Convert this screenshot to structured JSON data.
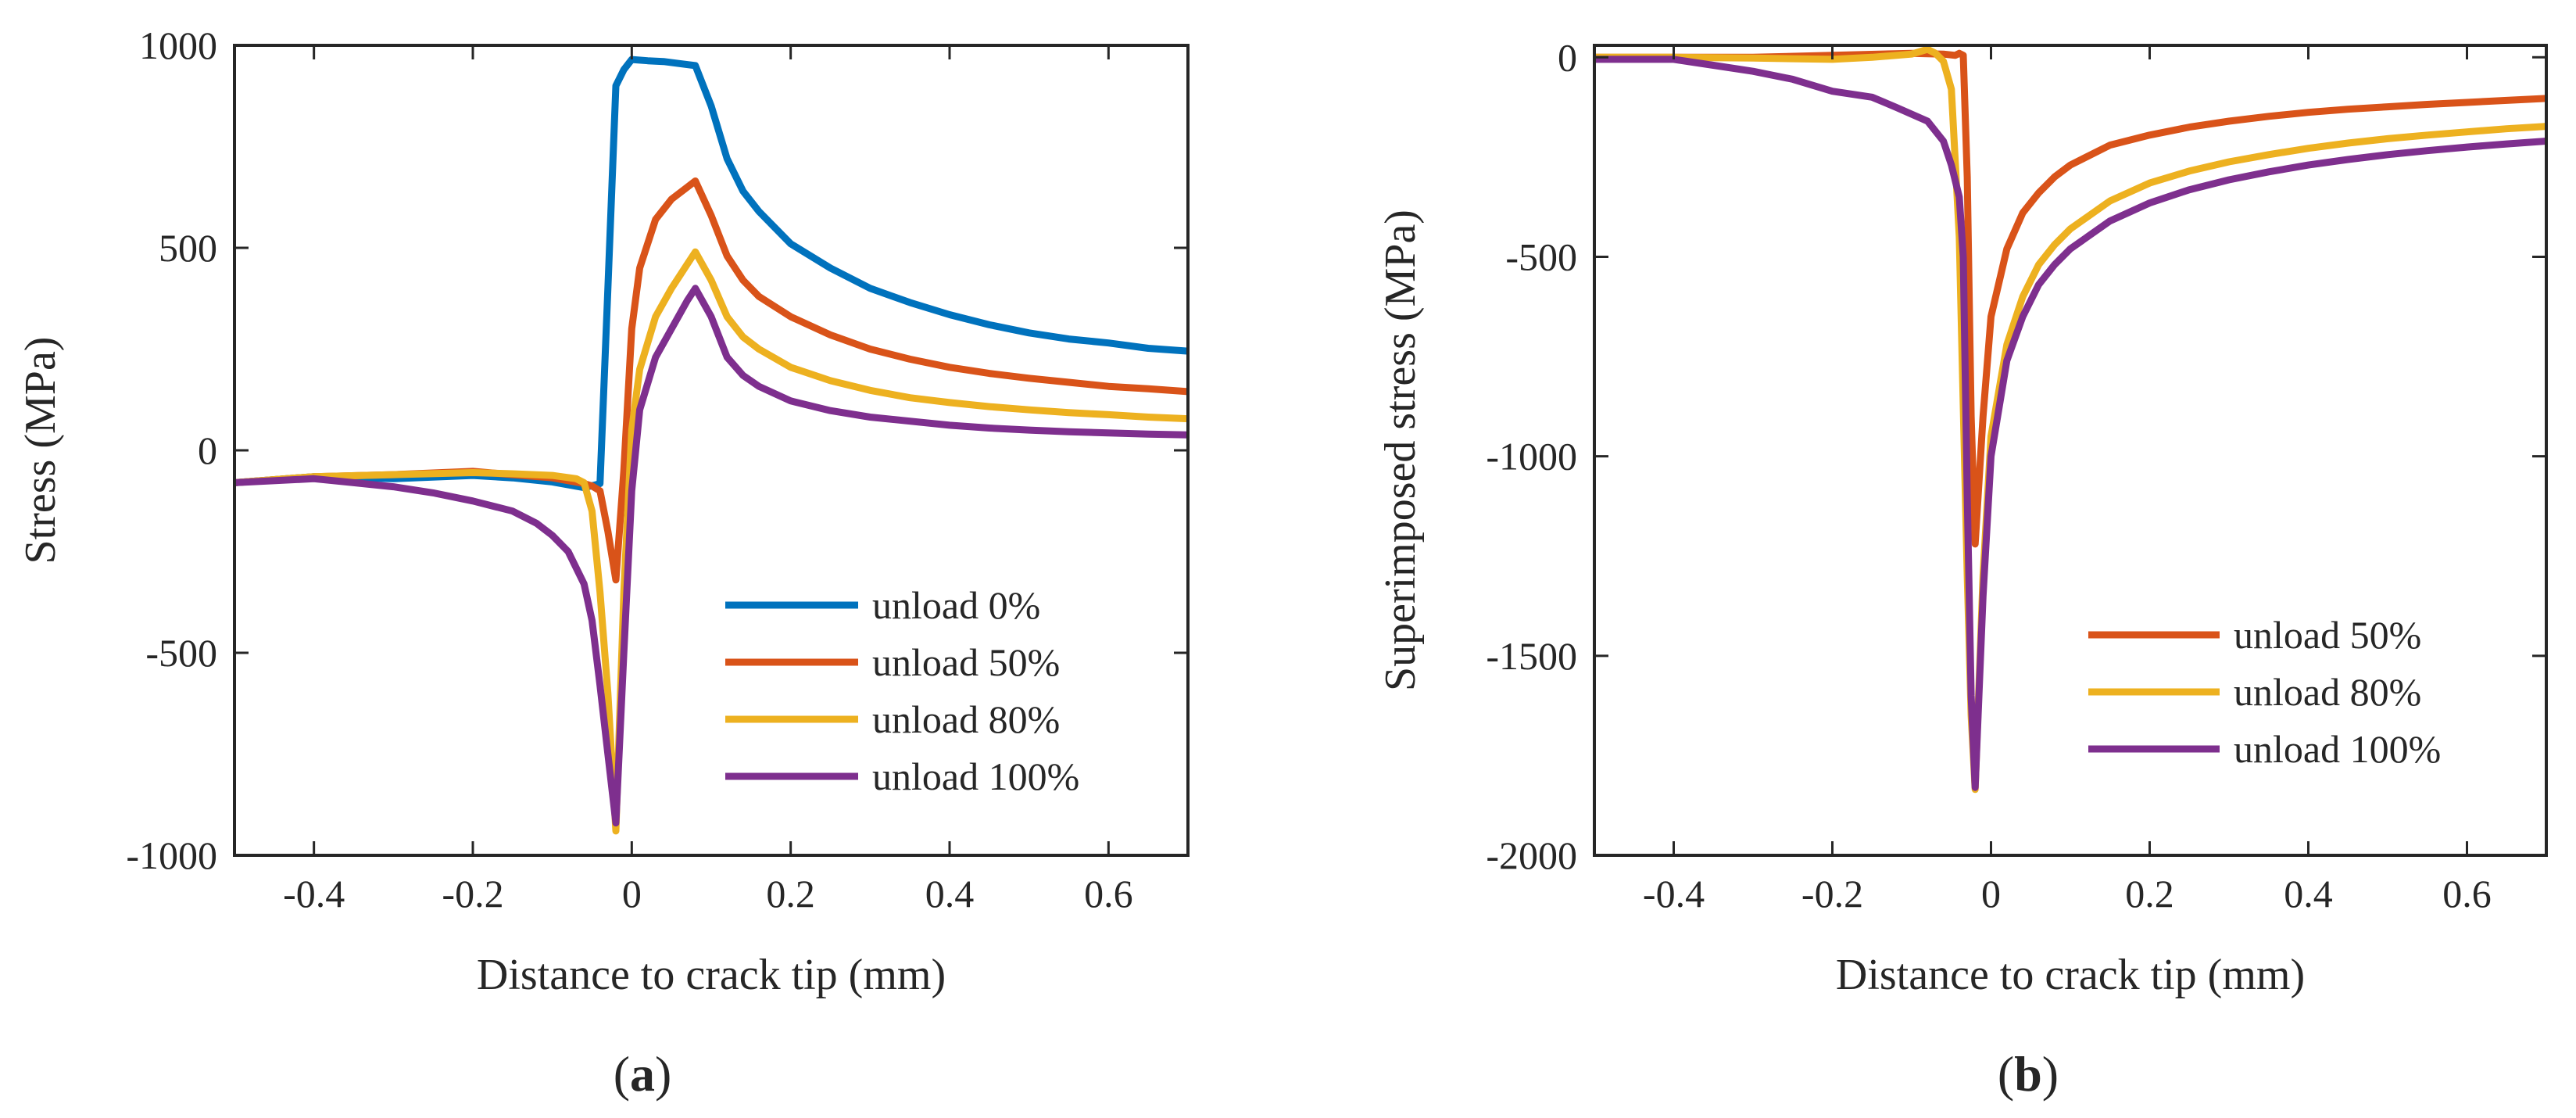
{
  "chart_data": [
    {
      "panel_label": "(a)",
      "type": "line",
      "title": "",
      "xlabel": "Distance to crack tip (mm)",
      "ylabel": "Stress (MPa)",
      "xlim": [
        -0.5,
        0.7
      ],
      "ylim": [
        -1000,
        1000
      ],
      "xticks": [
        -0.4,
        -0.2,
        0,
        0.2,
        0.4,
        0.6
      ],
      "xtick_labels": [
        "-0.4",
        "-0.2",
        "0",
        "0.2",
        "0.4",
        "0.6"
      ],
      "yticks": [
        -1000,
        -500,
        0,
        500,
        1000
      ],
      "ytick_labels": [
        "-1000",
        "-500",
        "0",
        "500",
        "1000"
      ],
      "legend_position": "lower-right",
      "series": [
        {
          "name": "unload 0%",
          "color": "#0072BD",
          "points": [
            [
              -0.5,
              -80
            ],
            [
              -0.4,
              -65
            ],
            [
              -0.3,
              -70
            ],
            [
              -0.2,
              -62
            ],
            [
              -0.15,
              -68
            ],
            [
              -0.1,
              -78
            ],
            [
              -0.06,
              -92
            ],
            [
              -0.045,
              -85
            ],
            [
              -0.04,
              -82
            ],
            [
              -0.03,
              400
            ],
            [
              -0.02,
              900
            ],
            [
              -0.01,
              940
            ],
            [
              0.0,
              965
            ],
            [
              0.02,
              962
            ],
            [
              0.04,
              960
            ],
            [
              0.06,
              955
            ],
            [
              0.08,
              950
            ],
            [
              0.1,
              850
            ],
            [
              0.12,
              720
            ],
            [
              0.14,
              640
            ],
            [
              0.16,
              590
            ],
            [
              0.2,
              510
            ],
            [
              0.25,
              450
            ],
            [
              0.3,
              400
            ],
            [
              0.35,
              365
            ],
            [
              0.4,
              335
            ],
            [
              0.45,
              310
            ],
            [
              0.5,
              290
            ],
            [
              0.55,
              275
            ],
            [
              0.6,
              265
            ],
            [
              0.65,
              252
            ],
            [
              0.7,
              245
            ]
          ]
        },
        {
          "name": "unload 50%",
          "color": "#D95319",
          "points": [
            [
              -0.5,
              -80
            ],
            [
              -0.4,
              -65
            ],
            [
              -0.3,
              -60
            ],
            [
              -0.2,
              -52
            ],
            [
              -0.15,
              -60
            ],
            [
              -0.1,
              -68
            ],
            [
              -0.06,
              -82
            ],
            [
              -0.05,
              -88
            ],
            [
              -0.04,
              -100
            ],
            [
              -0.03,
              -200
            ],
            [
              -0.02,
              -320
            ],
            [
              -0.01,
              -50
            ],
            [
              0.0,
              300
            ],
            [
              0.01,
              450
            ],
            [
              0.03,
              570
            ],
            [
              0.05,
              620
            ],
            [
              0.07,
              650
            ],
            [
              0.08,
              665
            ],
            [
              0.1,
              580
            ],
            [
              0.12,
              480
            ],
            [
              0.14,
              420
            ],
            [
              0.16,
              380
            ],
            [
              0.2,
              330
            ],
            [
              0.25,
              285
            ],
            [
              0.3,
              250
            ],
            [
              0.35,
              225
            ],
            [
              0.4,
              205
            ],
            [
              0.45,
              190
            ],
            [
              0.5,
              178
            ],
            [
              0.55,
              168
            ],
            [
              0.6,
              158
            ],
            [
              0.65,
              152
            ],
            [
              0.7,
              145
            ]
          ]
        },
        {
          "name": "unload 80%",
          "color": "#EDB120",
          "points": [
            [
              -0.5,
              -80
            ],
            [
              -0.4,
              -65
            ],
            [
              -0.3,
              -60
            ],
            [
              -0.2,
              -55
            ],
            [
              -0.15,
              -58
            ],
            [
              -0.1,
              -62
            ],
            [
              -0.07,
              -70
            ],
            [
              -0.06,
              -80
            ],
            [
              -0.05,
              -150
            ],
            [
              -0.04,
              -350
            ],
            [
              -0.03,
              -600
            ],
            [
              -0.02,
              -940
            ],
            [
              -0.01,
              -350
            ],
            [
              0.0,
              50
            ],
            [
              0.01,
              200
            ],
            [
              0.03,
              330
            ],
            [
              0.05,
              400
            ],
            [
              0.07,
              460
            ],
            [
              0.08,
              490
            ],
            [
              0.1,
              420
            ],
            [
              0.12,
              330
            ],
            [
              0.14,
              280
            ],
            [
              0.16,
              250
            ],
            [
              0.2,
              205
            ],
            [
              0.25,
              172
            ],
            [
              0.3,
              148
            ],
            [
              0.35,
              130
            ],
            [
              0.4,
              118
            ],
            [
              0.45,
              108
            ],
            [
              0.5,
              100
            ],
            [
              0.55,
              93
            ],
            [
              0.6,
              88
            ],
            [
              0.65,
              82
            ],
            [
              0.7,
              78
            ]
          ]
        },
        {
          "name": "unload 100%",
          "color": "#7E2F8E",
          "points": [
            [
              -0.5,
              -80
            ],
            [
              -0.4,
              -70
            ],
            [
              -0.35,
              -80
            ],
            [
              -0.3,
              -90
            ],
            [
              -0.25,
              -105
            ],
            [
              -0.2,
              -125
            ],
            [
              -0.15,
              -150
            ],
            [
              -0.12,
              -180
            ],
            [
              -0.1,
              -210
            ],
            [
              -0.08,
              -250
            ],
            [
              -0.06,
              -330
            ],
            [
              -0.05,
              -420
            ],
            [
              -0.04,
              -580
            ],
            [
              -0.03,
              -750
            ],
            [
              -0.02,
              -920
            ],
            [
              -0.01,
              -500
            ],
            [
              0.0,
              -100
            ],
            [
              0.01,
              100
            ],
            [
              0.03,
              230
            ],
            [
              0.05,
              300
            ],
            [
              0.07,
              370
            ],
            [
              0.08,
              400
            ],
            [
              0.1,
              330
            ],
            [
              0.12,
              230
            ],
            [
              0.14,
              185
            ],
            [
              0.16,
              158
            ],
            [
              0.2,
              122
            ],
            [
              0.25,
              98
            ],
            [
              0.3,
              82
            ],
            [
              0.35,
              72
            ],
            [
              0.4,
              62
            ],
            [
              0.45,
              55
            ],
            [
              0.5,
              50
            ],
            [
              0.55,
              46
            ],
            [
              0.6,
              43
            ],
            [
              0.65,
              40
            ],
            [
              0.7,
              38
            ]
          ]
        }
      ]
    },
    {
      "panel_label": "(b)",
      "type": "line",
      "title": "",
      "xlabel": "Distance to crack tip (mm)",
      "ylabel": "Superimposed stress (MPa)",
      "xlim": [
        -0.5,
        0.7
      ],
      "ylim": [
        -2000,
        30
      ],
      "xticks": [
        -0.4,
        -0.2,
        0,
        0.2,
        0.4,
        0.6
      ],
      "xtick_labels": [
        "-0.4",
        "-0.2",
        "0",
        "0.2",
        "0.4",
        "0.6"
      ],
      "yticks": [
        -2000,
        -1500,
        -1000,
        -500,
        0
      ],
      "ytick_labels": [
        "-2000",
        "-1500",
        "-1000",
        "-500",
        "0"
      ],
      "legend_position": "lower-right",
      "series": [
        {
          "name": "unload 50%",
          "color": "#D95319",
          "points": [
            [
              -0.5,
              0
            ],
            [
              -0.4,
              0
            ],
            [
              -0.3,
              0
            ],
            [
              -0.2,
              5
            ],
            [
              -0.1,
              10
            ],
            [
              -0.06,
              8
            ],
            [
              -0.045,
              5
            ],
            [
              -0.04,
              10
            ],
            [
              -0.035,
              5
            ],
            [
              -0.03,
              -300
            ],
            [
              -0.025,
              -900
            ],
            [
              -0.02,
              -1220
            ],
            [
              -0.01,
              -900
            ],
            [
              0.0,
              -650
            ],
            [
              0.02,
              -480
            ],
            [
              0.04,
              -390
            ],
            [
              0.06,
              -340
            ],
            [
              0.08,
              -300
            ],
            [
              0.1,
              -270
            ],
            [
              0.15,
              -220
            ],
            [
              0.2,
              -195
            ],
            [
              0.25,
              -175
            ],
            [
              0.3,
              -160
            ],
            [
              0.35,
              -148
            ],
            [
              0.4,
              -138
            ],
            [
              0.45,
              -130
            ],
            [
              0.5,
              -124
            ],
            [
              0.55,
              -118
            ],
            [
              0.6,
              -113
            ],
            [
              0.65,
              -108
            ],
            [
              0.7,
              -103
            ]
          ]
        },
        {
          "name": "unload 80%",
          "color": "#EDB120",
          "points": [
            [
              -0.5,
              0
            ],
            [
              -0.4,
              0
            ],
            [
              -0.3,
              -2
            ],
            [
              -0.2,
              -5
            ],
            [
              -0.15,
              0
            ],
            [
              -0.1,
              8
            ],
            [
              -0.08,
              20
            ],
            [
              -0.07,
              10
            ],
            [
              -0.06,
              -10
            ],
            [
              -0.05,
              -80
            ],
            [
              -0.04,
              -450
            ],
            [
              -0.03,
              -1300
            ],
            [
              -0.025,
              -1650
            ],
            [
              -0.02,
              -1835
            ],
            [
              -0.01,
              -1300
            ],
            [
              0.0,
              -950
            ],
            [
              0.02,
              -720
            ],
            [
              0.04,
              -600
            ],
            [
              0.06,
              -520
            ],
            [
              0.08,
              -470
            ],
            [
              0.1,
              -430
            ],
            [
              0.15,
              -360
            ],
            [
              0.2,
              -315
            ],
            [
              0.25,
              -285
            ],
            [
              0.3,
              -262
            ],
            [
              0.35,
              -244
            ],
            [
              0.4,
              -228
            ],
            [
              0.45,
              -215
            ],
            [
              0.5,
              -204
            ],
            [
              0.55,
              -195
            ],
            [
              0.6,
              -187
            ],
            [
              0.65,
              -179
            ],
            [
              0.7,
              -173
            ]
          ]
        },
        {
          "name": "unload 100%",
          "color": "#7E2F8E",
          "points": [
            [
              -0.5,
              -5
            ],
            [
              -0.4,
              -5
            ],
            [
              -0.35,
              -20
            ],
            [
              -0.3,
              -35
            ],
            [
              -0.25,
              -55
            ],
            [
              -0.2,
              -85
            ],
            [
              -0.15,
              -100
            ],
            [
              -0.12,
              -125
            ],
            [
              -0.08,
              -160
            ],
            [
              -0.06,
              -210
            ],
            [
              -0.05,
              -270
            ],
            [
              -0.04,
              -350
            ],
            [
              -0.035,
              -500
            ],
            [
              -0.03,
              -1100
            ],
            [
              -0.025,
              -1600
            ],
            [
              -0.02,
              -1830
            ],
            [
              -0.01,
              -1350
            ],
            [
              0.0,
              -1000
            ],
            [
              0.02,
              -760
            ],
            [
              0.04,
              -650
            ],
            [
              0.06,
              -570
            ],
            [
              0.08,
              -520
            ],
            [
              0.1,
              -480
            ],
            [
              0.15,
              -410
            ],
            [
              0.2,
              -365
            ],
            [
              0.25,
              -332
            ],
            [
              0.3,
              -307
            ],
            [
              0.35,
              -287
            ],
            [
              0.4,
              -270
            ],
            [
              0.45,
              -256
            ],
            [
              0.5,
              -244
            ],
            [
              0.55,
              -234
            ],
            [
              0.6,
              -225
            ],
            [
              0.65,
              -217
            ],
            [
              0.7,
              -210
            ]
          ]
        }
      ]
    }
  ]
}
